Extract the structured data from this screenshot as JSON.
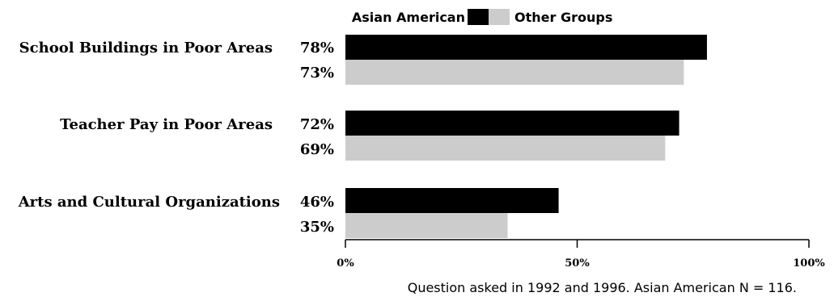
{
  "chart_data": {
    "type": "bar",
    "orientation": "horizontal",
    "categories": [
      "School Buildings in Poor Areas",
      "Teacher Pay in Poor Areas",
      "Arts and Cultural Organizations"
    ],
    "series": [
      {
        "name": "Asian American",
        "values": [
          78,
          72,
          46
        ],
        "color": "#000000"
      },
      {
        "name": "Other Groups",
        "values": [
          73,
          69,
          35
        ],
        "color": "#cccccc"
      }
    ],
    "value_labels": [
      [
        "78%",
        "72%",
        "46%"
      ],
      [
        "73%",
        "69%",
        "35%"
      ]
    ],
    "xlim": [
      0,
      100
    ],
    "xticks": [
      0,
      50,
      100
    ],
    "xtick_labels": [
      "0%",
      "50%",
      "100%"
    ],
    "legend_position": "top",
    "grid": false,
    "note": "Question asked in 1992 and 1996. Asian American N = 116."
  }
}
